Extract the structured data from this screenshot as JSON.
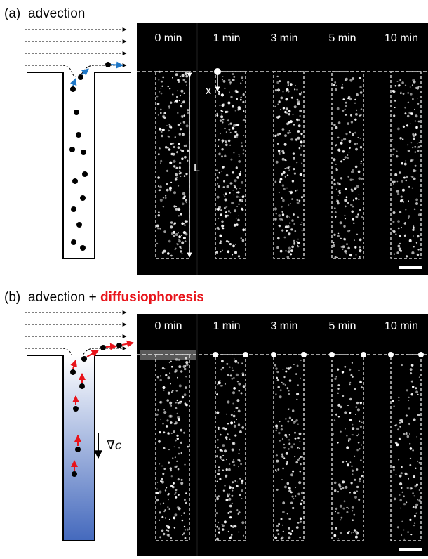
{
  "panels": [
    {
      "label": "(a)",
      "title": "advection",
      "times": [
        "0 min",
        "1 min",
        "3 min",
        "5 min",
        "10 min"
      ],
      "x_label": "x",
      "length_label": "L"
    },
    {
      "label": "(b)",
      "title": "advection + ",
      "title_highlight": "diffusiophoresis",
      "times": [
        "0 min",
        "1 min",
        "3 min",
        "5 min",
        "10 min"
      ],
      "gradient_label": "∇c"
    }
  ]
}
